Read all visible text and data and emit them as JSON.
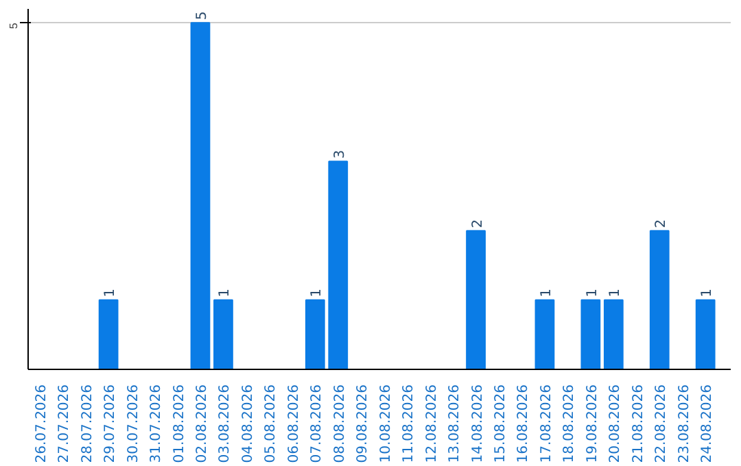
{
  "chart_data": {
    "type": "bar",
    "categories": [
      "26.07.2026",
      "27.07.2026",
      "28.07.2026",
      "29.07.2026",
      "30.07.2026",
      "31.07.2026",
      "01.08.2026",
      "02.08.2026",
      "03.08.2026",
      "04.08.2026",
      "05.08.2026",
      "06.08.2026",
      "07.08.2026",
      "08.08.2026",
      "09.08.2026",
      "10.08.2026",
      "11.08.2026",
      "12.08.2026",
      "13.08.2026",
      "14.08.2026",
      "15.08.2026",
      "16.08.2026",
      "17.08.2026",
      "18.08.2026",
      "19.08.2026",
      "20.08.2026",
      "21.08.2026",
      "22.08.2026",
      "23.08.2026",
      "24.08.2026"
    ],
    "values": [
      0,
      0,
      0,
      1,
      0,
      0,
      0,
      5,
      1,
      0,
      0,
      0,
      1,
      3,
      0,
      0,
      0,
      0,
      0,
      2,
      0,
      0,
      1,
      0,
      1,
      1,
      0,
      2,
      0,
      1
    ],
    "value_labels": [
      null,
      null,
      null,
      "1",
      null,
      null,
      null,
      "5",
      "1",
      null,
      null,
      null,
      "1",
      "3",
      null,
      null,
      null,
      null,
      null,
      "2",
      null,
      null,
      "1",
      null,
      "1",
      "1",
      null,
      "2",
      null,
      "1"
    ],
    "color": "#0a7ce6",
    "ylim": [
      0,
      5.2
    ],
    "yticks": [
      5
    ],
    "grid": "y"
  }
}
